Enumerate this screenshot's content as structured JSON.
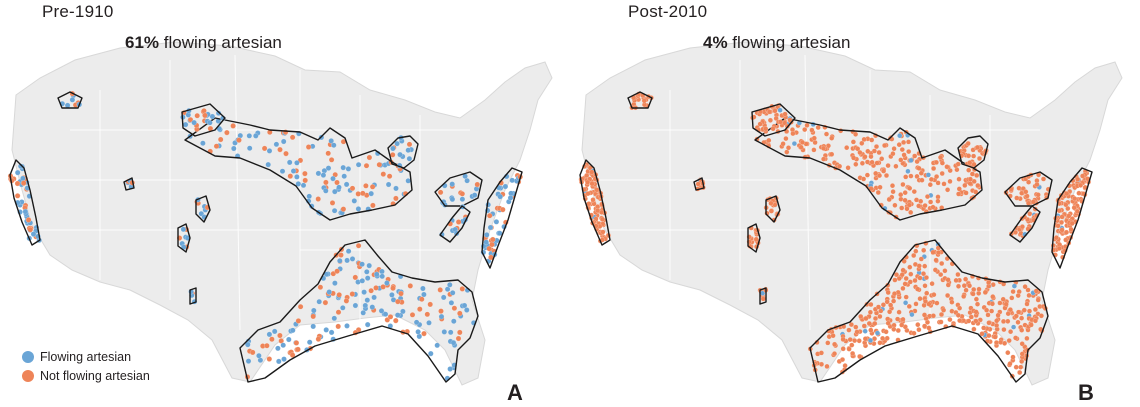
{
  "colors": {
    "flowing": "#6aa5d6",
    "not_flowing": "#ee8458",
    "land": "#ececec",
    "boundary": "#1a1a1a"
  },
  "legend": {
    "flowing_label": "Flowing artesian",
    "not_flowing_label": "Not flowing artesian"
  },
  "panels": [
    {
      "era": "Pre-1910",
      "percent": "61%",
      "label": " flowing artesian",
      "letter": "A",
      "flowing_fraction": 0.61
    },
    {
      "era": "Post-2010",
      "percent": "4%",
      "label": " flowing artesian",
      "letter": "B",
      "flowing_fraction": 0.04
    }
  ]
}
